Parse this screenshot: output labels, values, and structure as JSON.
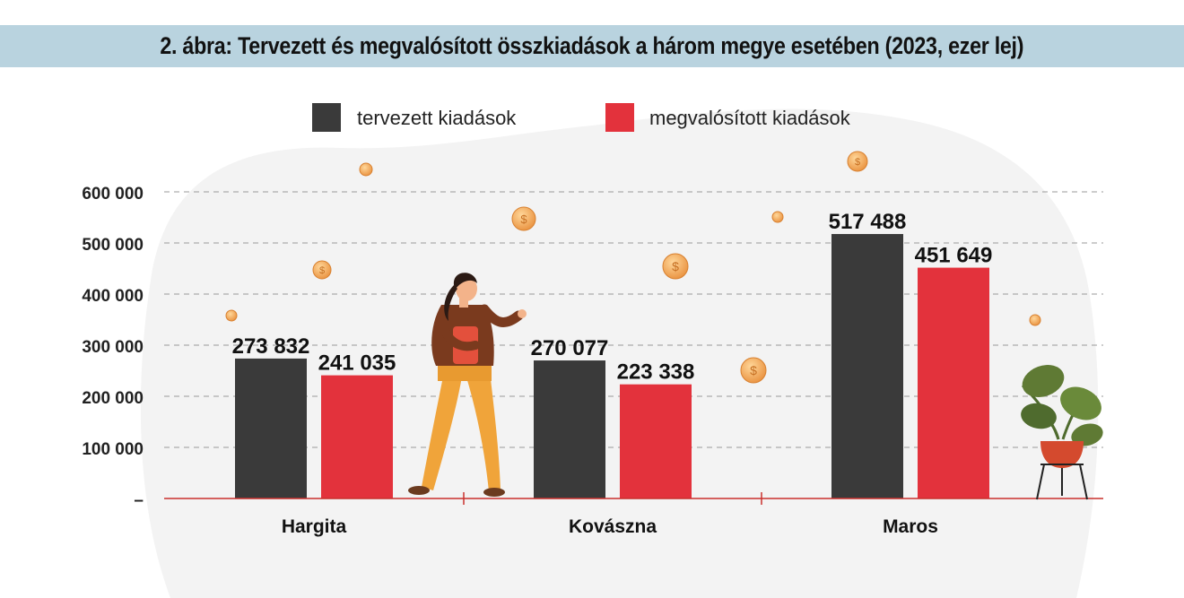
{
  "title": "2. ábra: Tervezett és megvalósított összkiadások a három megye esetében (2023, ezer lej)",
  "colors": {
    "planned": "#3a3a3a",
    "realized": "#e3323c",
    "title_bar": "#b9d3df",
    "axis": "#c9302c"
  },
  "chart_data": {
    "type": "bar",
    "title": "2. ábra: Tervezett és megvalósított összkiadások a három megye esetében (2023, ezer lej)",
    "categories": [
      "Hargita",
      "Kovászna",
      "Maros"
    ],
    "series": [
      {
        "name": "tervezett kiadások",
        "values": [
          273832,
          270077,
          517488
        ],
        "labels": [
          "273 832",
          "270 077",
          "517 488"
        ]
      },
      {
        "name": "megvalósított kiadások",
        "values": [
          241035,
          223338,
          451649
        ],
        "labels": [
          "241 035",
          "223 338",
          "451 649"
        ]
      }
    ],
    "yticks": [
      {
        "value": 0,
        "label": "–"
      },
      {
        "value": 100000,
        "label": "100 000"
      },
      {
        "value": 200000,
        "label": "200 000"
      },
      {
        "value": 300000,
        "label": "300 000"
      },
      {
        "value": 400000,
        "label": "400 000"
      },
      {
        "value": 500000,
        "label": "500 000"
      },
      {
        "value": 600000,
        "label": "600 000"
      }
    ],
    "ylim": [
      0,
      600000
    ],
    "grid": true,
    "legend_position": "top-center",
    "xlabel": "",
    "ylabel": ""
  }
}
